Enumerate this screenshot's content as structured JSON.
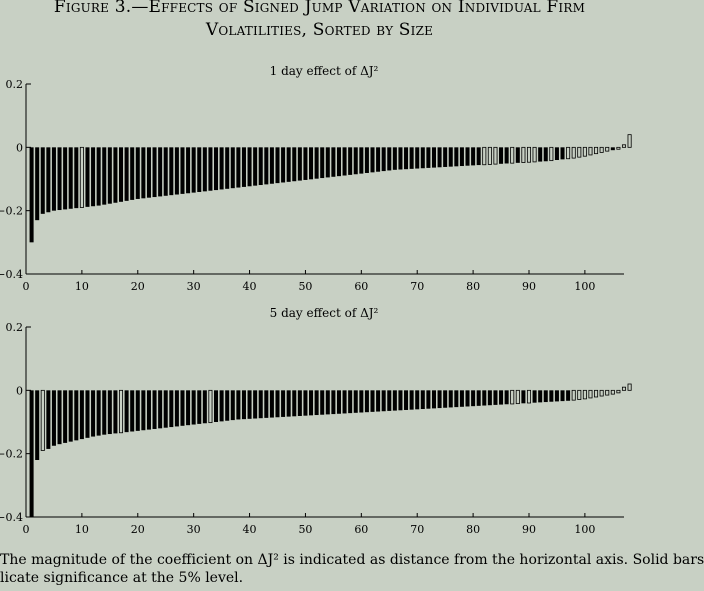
{
  "figure": {
    "title_line1": "Figure 3.—Effects of Signed Jump Variation on Individual Firm",
    "title_line2": "Volatilities, Sorted by Size",
    "caption_line1": "The magnitude of the coefficient on ΔJ² is indicated as distance from the horizontal axis. Solid bars",
    "caption_line2": "licate significance at the 5% level."
  },
  "chart_data": [
    {
      "type": "bar",
      "title": "1 day effect of ΔJ²",
      "xlabel": "",
      "ylabel": "",
      "xlim": [
        0,
        107
      ],
      "ylim": [
        -0.4,
        0.2
      ],
      "xticks": [
        0,
        10,
        20,
        30,
        40,
        50,
        60,
        70,
        80,
        90,
        100
      ],
      "yticks": [
        0.2,
        0,
        -0.2,
        -0.4
      ],
      "ytick_labels": [
        "0.2",
        "0",
        "−0.2",
        "−0.4"
      ],
      "values": [
        -0.3,
        -0.23,
        -0.21,
        -0.205,
        -0.2,
        -0.198,
        -0.196,
        -0.194,
        -0.192,
        -0.19,
        -0.188,
        -0.186,
        -0.184,
        -0.181,
        -0.178,
        -0.175,
        -0.172,
        -0.169,
        -0.166,
        -0.163,
        -0.161,
        -0.159,
        -0.157,
        -0.155,
        -0.153,
        -0.151,
        -0.149,
        -0.147,
        -0.145,
        -0.143,
        -0.141,
        -0.139,
        -0.137,
        -0.135,
        -0.133,
        -0.131,
        -0.129,
        -0.127,
        -0.125,
        -0.123,
        -0.121,
        -0.119,
        -0.117,
        -0.115,
        -0.113,
        -0.111,
        -0.109,
        -0.107,
        -0.105,
        -0.103,
        -0.101,
        -0.099,
        -0.097,
        -0.095,
        -0.093,
        -0.091,
        -0.089,
        -0.087,
        -0.085,
        -0.083,
        -0.081,
        -0.079,
        -0.077,
        -0.075,
        -0.073,
        -0.071,
        -0.07,
        -0.069,
        -0.068,
        -0.067,
        -0.066,
        -0.065,
        -0.064,
        -0.063,
        -0.062,
        -0.061,
        -0.06,
        -0.059,
        -0.058,
        -0.057,
        -0.056,
        -0.055,
        -0.054,
        -0.053,
        -0.052,
        -0.051,
        -0.05,
        -0.049,
        -0.048,
        -0.047,
        -0.046,
        -0.045,
        -0.044,
        -0.042,
        -0.04,
        -0.038,
        -0.036,
        -0.034,
        -0.031,
        -0.028,
        -0.024,
        -0.02,
        -0.016,
        -0.012,
        -0.009,
        -0.006,
        0.008,
        0.04
      ],
      "significant": [
        true,
        true,
        true,
        true,
        true,
        true,
        true,
        true,
        true,
        false,
        true,
        true,
        true,
        true,
        true,
        true,
        true,
        true,
        true,
        true,
        true,
        true,
        true,
        true,
        true,
        true,
        true,
        true,
        true,
        true,
        true,
        true,
        true,
        true,
        true,
        true,
        true,
        true,
        true,
        true,
        true,
        true,
        true,
        true,
        true,
        true,
        true,
        true,
        true,
        true,
        true,
        true,
        true,
        true,
        true,
        true,
        true,
        true,
        true,
        true,
        true,
        true,
        true,
        true,
        true,
        true,
        true,
        true,
        true,
        true,
        true,
        true,
        true,
        true,
        true,
        true,
        true,
        true,
        true,
        true,
        true,
        false,
        false,
        false,
        true,
        true,
        false,
        true,
        false,
        false,
        false,
        true,
        true,
        false,
        true,
        true,
        false,
        false,
        false,
        false,
        false,
        false,
        false,
        false,
        true,
        false,
        false,
        false
      ]
    },
    {
      "type": "bar",
      "title": "5 day effect of ΔJ²",
      "xlabel": "",
      "ylabel": "",
      "xlim": [
        0,
        107
      ],
      "ylim": [
        -0.4,
        0.2
      ],
      "xticks": [
        0,
        10,
        20,
        30,
        40,
        50,
        60,
        70,
        80,
        90,
        100
      ],
      "yticks": [
        0.2,
        0,
        -0.2,
        -0.4
      ],
      "ytick_labels": [
        "0.2",
        "0",
        "−0.2",
        "−0.4"
      ],
      "values": [
        -0.4,
        -0.22,
        -0.19,
        -0.185,
        -0.175,
        -0.17,
        -0.166,
        -0.162,
        -0.158,
        -0.154,
        -0.15,
        -0.146,
        -0.143,
        -0.14,
        -0.138,
        -0.136,
        -0.134,
        -0.132,
        -0.13,
        -0.128,
        -0.126,
        -0.124,
        -0.122,
        -0.12,
        -0.118,
        -0.116,
        -0.114,
        -0.112,
        -0.11,
        -0.108,
        -0.106,
        -0.104,
        -0.102,
        -0.1,
        -0.098,
        -0.096,
        -0.094,
        -0.092,
        -0.091,
        -0.09,
        -0.089,
        -0.088,
        -0.087,
        -0.086,
        -0.085,
        -0.084,
        -0.083,
        -0.082,
        -0.081,
        -0.08,
        -0.079,
        -0.078,
        -0.077,
        -0.076,
        -0.075,
        -0.074,
        -0.073,
        -0.072,
        -0.071,
        -0.07,
        -0.069,
        -0.068,
        -0.067,
        -0.066,
        -0.065,
        -0.064,
        -0.063,
        -0.062,
        -0.061,
        -0.06,
        -0.059,
        -0.058,
        -0.057,
        -0.056,
        -0.055,
        -0.054,
        -0.053,
        -0.052,
        -0.051,
        -0.05,
        -0.049,
        -0.048,
        -0.047,
        -0.046,
        -0.045,
        -0.044,
        -0.043,
        -0.042,
        -0.041,
        -0.04,
        -0.039,
        -0.038,
        -0.037,
        -0.036,
        -0.035,
        -0.034,
        -0.033,
        -0.031,
        -0.029,
        -0.027,
        -0.024,
        -0.021,
        -0.018,
        -0.015,
        -0.012,
        -0.008,
        0.01,
        0.02
      ],
      "significant": [
        true,
        true,
        false,
        true,
        true,
        true,
        true,
        true,
        true,
        true,
        true,
        true,
        true,
        true,
        true,
        true,
        false,
        true,
        true,
        true,
        true,
        true,
        true,
        true,
        true,
        true,
        true,
        true,
        true,
        true,
        true,
        true,
        false,
        true,
        true,
        true,
        true,
        true,
        true,
        true,
        true,
        true,
        true,
        true,
        true,
        true,
        true,
        true,
        true,
        true,
        true,
        true,
        true,
        true,
        true,
        true,
        true,
        true,
        true,
        true,
        true,
        true,
        true,
        true,
        true,
        true,
        true,
        true,
        true,
        true,
        true,
        true,
        true,
        true,
        true,
        true,
        true,
        true,
        true,
        true,
        true,
        true,
        true,
        true,
        true,
        true,
        false,
        false,
        true,
        false,
        true,
        true,
        true,
        true,
        true,
        true,
        true,
        false,
        false,
        false,
        false,
        false,
        false,
        false,
        false,
        false,
        false,
        false
      ]
    }
  ],
  "colors": {
    "background": "#c8d0c4",
    "bar": "#000000"
  }
}
